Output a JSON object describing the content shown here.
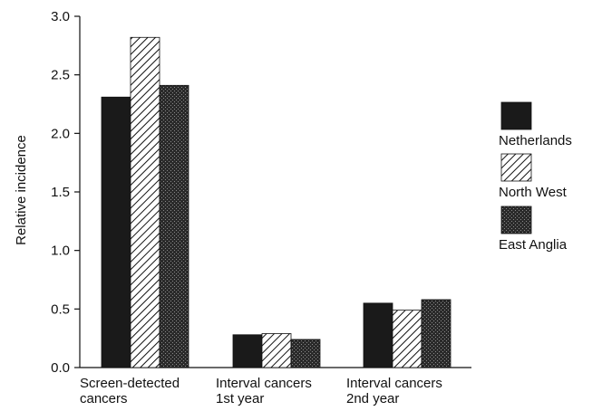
{
  "chart_data": {
    "type": "bar",
    "ylabel": "Relative incidence",
    "xlabel": "",
    "ylim": [
      0,
      3.0
    ],
    "yticks": [
      "0.0",
      "0.5",
      "1.0",
      "1.5",
      "2.0",
      "2.5",
      "3.0"
    ],
    "categories": [
      [
        "Screen-detected",
        "cancers"
      ],
      [
        "Interval cancers",
        "1st year"
      ],
      [
        "Interval cancers",
        "2nd year"
      ]
    ],
    "series": [
      {
        "name": "Netherlands",
        "values": [
          2.31,
          0.28,
          0.55
        ],
        "fill": "solid"
      },
      {
        "name": "North West",
        "values": [
          2.82,
          0.29,
          0.49
        ],
        "fill": "hatch"
      },
      {
        "name": "East Anglia",
        "values": [
          2.41,
          0.24,
          0.58
        ],
        "fill": "dense"
      }
    ],
    "legend_position": "right",
    "grid": false
  },
  "colors": {
    "ink": "#111111",
    "bar_dark": "#1a1a1a",
    "background": "#ffffff"
  }
}
